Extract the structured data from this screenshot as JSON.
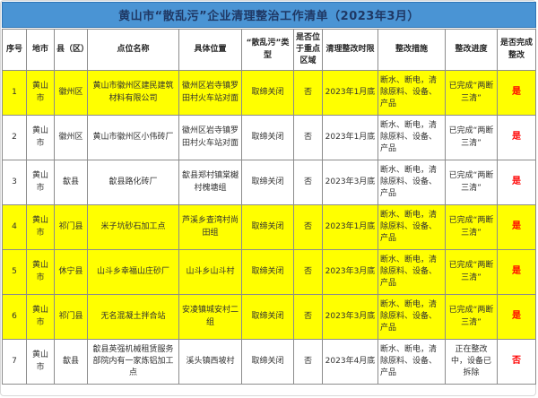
{
  "title": "黄山市“散乱污”企业清理整治工作清单（2023年3月）",
  "colors": {
    "title_bar_bg": "#4a94d4",
    "title_bar_border": "#2e75b6",
    "title_text": "#1f3864",
    "row_highlight": "#ffff00",
    "status_text": "#ff0000",
    "grid_border": "#8c8c8c"
  },
  "table": {
    "columns": [
      {
        "key": "seq",
        "label": "序号"
      },
      {
        "key": "city",
        "label": "地市"
      },
      {
        "key": "county",
        "label": "县（区）"
      },
      {
        "key": "site",
        "label": "点位名称"
      },
      {
        "key": "location",
        "label": "具体位置"
      },
      {
        "key": "type",
        "label": "“散乱污”类型"
      },
      {
        "key": "key_area",
        "label": "是否位于重点区域"
      },
      {
        "key": "deadline",
        "label": "清理整改时限"
      },
      {
        "key": "measures",
        "label": "整改措施"
      },
      {
        "key": "progress",
        "label": "整改进度"
      },
      {
        "key": "complete",
        "label": "是否完成整改"
      }
    ],
    "rows": [
      {
        "highlighted": true,
        "cells": {
          "seq": "1",
          "city": "黄山市",
          "county": "徽州区",
          "site": "黄山市徽州区建民建筑材料有限公司",
          "location": "徽州区岩寺镇罗田村火车站对面",
          "type": "取缔关闭",
          "key_area": "否",
          "deadline": "2023年1月底",
          "measures": "断水、断电，清除原料、设备、产品",
          "progress": "已完成“两断三清”",
          "complete": "是"
        }
      },
      {
        "highlighted": false,
        "cells": {
          "seq": "2",
          "city": "黄山市",
          "county": "徽州区",
          "site": "黄山市徽州区小伟砖厂",
          "location": "徽州区岩寺镇罗田村火车站对面",
          "type": "取缔关闭",
          "key_area": "否",
          "deadline": "2023年1月底",
          "measures": "断水、断电，清除原料、设备、产品",
          "progress": "已完成“两断三清”",
          "complete": "是"
        }
      },
      {
        "highlighted": false,
        "cells": {
          "seq": "3",
          "city": "黄山市",
          "county": "歙县",
          "site": "歙县路化砖厂",
          "location": "歙县郑村镇棠樾村槐塘组",
          "type": "取缔关闭",
          "key_area": "否",
          "deadline": "2023年3月底",
          "measures": "断水、断电，清除原料、设备、产品",
          "progress": "已完成“两断三清”",
          "complete": "是"
        }
      },
      {
        "highlighted": true,
        "cells": {
          "seq": "4",
          "city": "黄山市",
          "county": "祁门县",
          "site": "米子坑砂石加工点",
          "location": "芦溪乡查湾村尚田组",
          "type": "取缔关闭",
          "key_area": "否",
          "deadline": "2023年1月底",
          "measures": "断水、断电，清除原料、设备、产品",
          "progress": "已完成“两断三清”",
          "complete": "是"
        }
      },
      {
        "highlighted": true,
        "cells": {
          "seq": "5",
          "city": "黄山市",
          "county": "休宁县",
          "site": "山斗乡幸福山庄砂厂",
          "location": "山斗乡山斗村",
          "type": "取缔关闭",
          "key_area": "否",
          "deadline": "2023年3月底",
          "measures": "断水、断电，清除原料、设备、产品",
          "progress": "已完成“两断三清”",
          "complete": "是"
        }
      },
      {
        "highlighted": true,
        "cells": {
          "seq": "6",
          "city": "黄山市",
          "county": "祁门县",
          "site": "无名混凝土拌合站",
          "location": "安凌镇城安村二组",
          "type": "取缔关闭",
          "key_area": "否",
          "deadline": "2023年3月底",
          "measures": "断水、断电，清除原料、设备、产品",
          "progress": "已完成“两断三清”",
          "complete": "是"
        }
      },
      {
        "highlighted": false,
        "cells": {
          "seq": "7",
          "city": "黄山市",
          "county": "歙县",
          "site": "歙县英强机械租赁服务部院内有一家炼铝加工点",
          "location": "溪头镇西坡村",
          "type": "取缔关闭",
          "key_area": "否",
          "deadline": "2023年4月底",
          "measures": "断水、断电，清除原料、设备、产品",
          "progress": "正在整改中，设备已拆除",
          "complete": "否"
        }
      }
    ]
  }
}
